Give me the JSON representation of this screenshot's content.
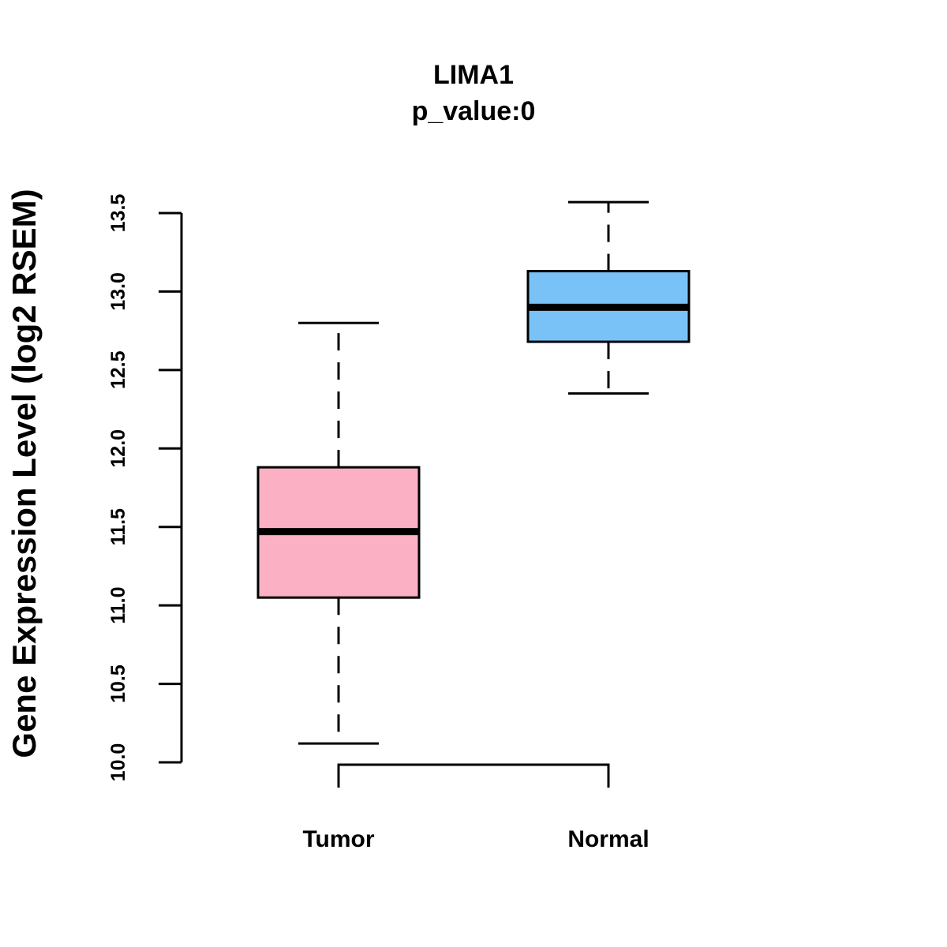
{
  "chart_data": {
    "type": "boxplot",
    "title": "LIMA1",
    "subtitle": "p_value:0",
    "xlabel": "",
    "ylabel": "Gene Expression Level (log2 RSEM)",
    "ylim": [
      10.0,
      13.5
    ],
    "yticks": [
      "10.0",
      "10.5",
      "11.0",
      "11.5",
      "12.0",
      "12.5",
      "13.0",
      "13.5"
    ],
    "categories": [
      "Tumor",
      "Normal"
    ],
    "series": [
      {
        "name": "Tumor",
        "whisker_low": 10.12,
        "q1": 11.05,
        "median": 11.47,
        "q3": 11.88,
        "whisker_high": 12.8,
        "color": "#FCB0C3"
      },
      {
        "name": "Normal",
        "whisker_low": 12.35,
        "q1": 12.68,
        "median": 12.9,
        "q3": 13.13,
        "whisker_high": 13.57,
        "color": "#78C2F7"
      }
    ],
    "comparison_bracket": {
      "from": "Tumor",
      "to": "Normal"
    },
    "grid": false,
    "legend": "none"
  }
}
